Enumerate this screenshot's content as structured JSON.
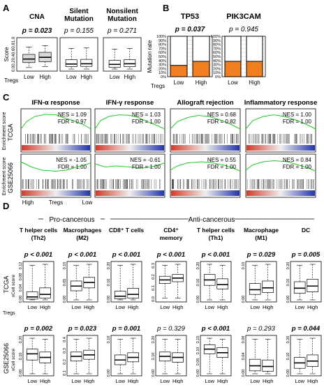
{
  "panel_letters": [
    "A",
    "B",
    "C",
    "D"
  ],
  "colors": {
    "green_curve": "#22cc22",
    "orange": "#f07f22",
    "red_bar": "#d43a2a",
    "blue_bar": "#2233aa",
    "box_fill": "#d9d9d9"
  },
  "panelA": {
    "y_label": "Score",
    "group_label": "Tregs",
    "categories": [
      "Low",
      "High"
    ],
    "y_ticks": [
      "0.0",
      "0.2",
      "0.4",
      "0.6",
      "0.8",
      "1.0"
    ],
    "plots": [
      {
        "title": [
          "CNA"
        ],
        "pvalue": "p = 0.023",
        "bold": true,
        "filled": true,
        "boxes": [
          [
            0.05,
            0.22,
            0.34,
            0.5,
            0.75
          ],
          [
            0.08,
            0.25,
            0.4,
            0.57,
            0.8
          ]
        ]
      },
      {
        "title": [
          "Silent",
          "Mutation"
        ],
        "pvalue": "p = 0.155",
        "bold": false,
        "filled": false,
        "boxes": [
          [
            0.0,
            0.08,
            0.17,
            0.32,
            0.7
          ],
          [
            0.0,
            0.09,
            0.18,
            0.33,
            0.72
          ]
        ]
      },
      {
        "title": [
          "Nonsilent",
          "Mutation"
        ],
        "pvalue": "p = 0.271",
        "bold": false,
        "filled": false,
        "boxes": [
          [
            0.0,
            0.06,
            0.16,
            0.3,
            0.68
          ],
          [
            0.0,
            0.08,
            0.18,
            0.32,
            0.7
          ]
        ]
      }
    ]
  },
  "panelB": {
    "y_label": "Mutation rate",
    "group_label": "Tregs",
    "categories": [
      "Low",
      "High"
    ],
    "y_ticks": [
      "0%",
      "10%",
      "20%",
      "30%",
      "40%",
      "50%",
      "60%",
      "70%",
      "80%",
      "90%",
      "100%"
    ],
    "plots": [
      {
        "title": "TP53",
        "pvalue": "p = 0.037",
        "bold": true,
        "rates": [
          0.28,
          0.38
        ]
      },
      {
        "title": "PIK3CAM",
        "pvalue": "p = 0.945",
        "bold": false,
        "rates": [
          0.38,
          0.38
        ]
      }
    ]
  },
  "panelC": {
    "y_label": "Enrichment score",
    "x_labels": [
      "High",
      "Tregs",
      "Low"
    ],
    "titles": [
      "IFN-α response",
      "IFN-γ response",
      "Allograft rejection",
      "Inflammatory response"
    ],
    "rows": [
      {
        "dataset": "TCGA",
        "stats": [
          {
            "nes": "NES = 1.09",
            "fdr": "FDR = 0.97"
          },
          {
            "nes": "NES = 1.03",
            "fdr": "FDR = 1.00"
          },
          {
            "nes": "NES = 0.68",
            "fdr": "FDR = 0.82"
          },
          {
            "nes": "NES = 1.00",
            "fdr": "FDR = 1.00"
          }
        ]
      },
      {
        "dataset": "GSE25066",
        "stats": [
          {
            "nes": "NES = -1.05",
            "fdr": "FDR = 1.00"
          },
          {
            "nes": "NES = -0.61",
            "fdr": "FDR = 1.00"
          },
          {
            "nes": "NES = 0.55",
            "fdr": "FDR = 1.00"
          },
          {
            "nes": "NES = 0.84",
            "fdr": "FDR = 1.00"
          }
        ]
      }
    ]
  },
  "panelD": {
    "header_left": "Pro-cancerous",
    "header_right": "Anti-cancerous",
    "y_label": "xCell score",
    "group_label": "Tregs",
    "categories": [
      "Low",
      "High"
    ],
    "cells": [
      [
        "T helper cells",
        "(Th2)"
      ],
      [
        "Macrophages",
        "(M2)"
      ],
      [
        "CD8⁺ T cells"
      ],
      [
        "CD4⁺",
        "memory"
      ],
      [
        "T helper cells",
        "(Th1)"
      ],
      [
        "Macrophage",
        "(M1)"
      ],
      [
        "DC"
      ]
    ],
    "rows": [
      {
        "dataset": "TCGA",
        "pvalues": [
          "p < 0.001",
          "p < 0.001",
          "p < 0.001",
          "p < 0.001",
          "p < 0.001",
          "p = 0.029",
          "p = 0.005"
        ],
        "bold": [
          true,
          true,
          true,
          true,
          true,
          true,
          true
        ],
        "yticks": [
          [
            "0.00",
            "0.04",
            "0.08",
            "0.12"
          ],
          [
            "0.00",
            "0.05",
            "0.10"
          ],
          [
            "0.00",
            "0.10",
            "0.20"
          ],
          [
            "0.0",
            "0.1",
            "0.2",
            "0.3"
          ],
          [
            "0.00",
            "0.10",
            "0.20"
          ],
          [
            "0.00",
            "0.10"
          ],
          [
            "0.00",
            "0.10",
            "0.20"
          ]
        ],
        "boxes": [
          [
            [
              0.0,
              0.02,
              0.08,
              0.22,
              0.95
            ],
            [
              0.0,
              0.05,
              0.15,
              0.33,
              0.98
            ]
          ],
          [
            [
              0.0,
              0.25,
              0.38,
              0.52,
              0.95
            ],
            [
              0.0,
              0.33,
              0.48,
              0.62,
              0.98
            ]
          ],
          [
            [
              0.0,
              0.03,
              0.1,
              0.24,
              0.95
            ],
            [
              0.0,
              0.05,
              0.15,
              0.32,
              0.98
            ]
          ],
          [
            [
              0.05,
              0.45,
              0.55,
              0.65,
              0.95
            ],
            [
              0.05,
              0.5,
              0.6,
              0.7,
              0.98
            ]
          ],
          [
            [
              0.0,
              0.4,
              0.55,
              0.7,
              0.98
            ],
            [
              0.0,
              0.3,
              0.42,
              0.58,
              0.95
            ]
          ],
          [
            [
              0.0,
              0.15,
              0.28,
              0.45,
              0.95
            ],
            [
              0.0,
              0.2,
              0.33,
              0.52,
              0.98
            ]
          ],
          [
            [
              0.0,
              0.18,
              0.32,
              0.5,
              0.95
            ],
            [
              0.0,
              0.22,
              0.38,
              0.57,
              0.98
            ]
          ]
        ]
      },
      {
        "dataset": "GSE25066",
        "pvalues": [
          "p = 0.002",
          "p = 0.023",
          "p = 0.001",
          "p = 0.329",
          "p < 0.001",
          "p = 0.293",
          "p = 0.044"
        ],
        "bold": [
          true,
          true,
          true,
          false,
          true,
          false,
          true
        ],
        "yticks": [
          [
            "0.00",
            "0.10",
            "0.20"
          ],
          [
            "0.1",
            "0.2",
            "0.3",
            "0.4"
          ],
          [
            "0.00",
            "0.10"
          ],
          [
            "0.00",
            "0.10",
            "0.20"
          ],
          [
            "0.00",
            "0.05",
            "0.10",
            "0.15"
          ],
          [
            "0.00",
            "0.04",
            "0.08"
          ],
          [
            "0.00",
            "0.10",
            "0.20"
          ]
        ],
        "boxes": [
          [
            [
              0.0,
              0.38,
              0.55,
              0.68,
              0.98
            ],
            [
              0.0,
              0.3,
              0.45,
              0.6,
              0.95
            ]
          ],
          [
            [
              0.0,
              0.35,
              0.48,
              0.6,
              0.95
            ],
            [
              0.0,
              0.4,
              0.52,
              0.65,
              0.98
            ]
          ],
          [
            [
              0.0,
              0.25,
              0.38,
              0.52,
              0.95
            ],
            [
              0.0,
              0.33,
              0.45,
              0.58,
              0.98
            ]
          ],
          [
            [
              0.0,
              0.35,
              0.48,
              0.6,
              0.95
            ],
            [
              0.0,
              0.32,
              0.45,
              0.58,
              0.95
            ]
          ],
          [
            [
              0.0,
              0.55,
              0.68,
              0.8,
              0.98
            ],
            [
              0.0,
              0.45,
              0.58,
              0.72,
              0.95
            ]
          ],
          [
            [
              0.0,
              0.08,
              0.22,
              0.4,
              0.95
            ],
            [
              0.0,
              0.07,
              0.2,
              0.38,
              0.95
            ]
          ],
          [
            [
              0.0,
              0.15,
              0.3,
              0.45,
              0.95
            ],
            [
              0.0,
              0.2,
              0.35,
              0.52,
              0.98
            ]
          ]
        ]
      }
    ]
  }
}
